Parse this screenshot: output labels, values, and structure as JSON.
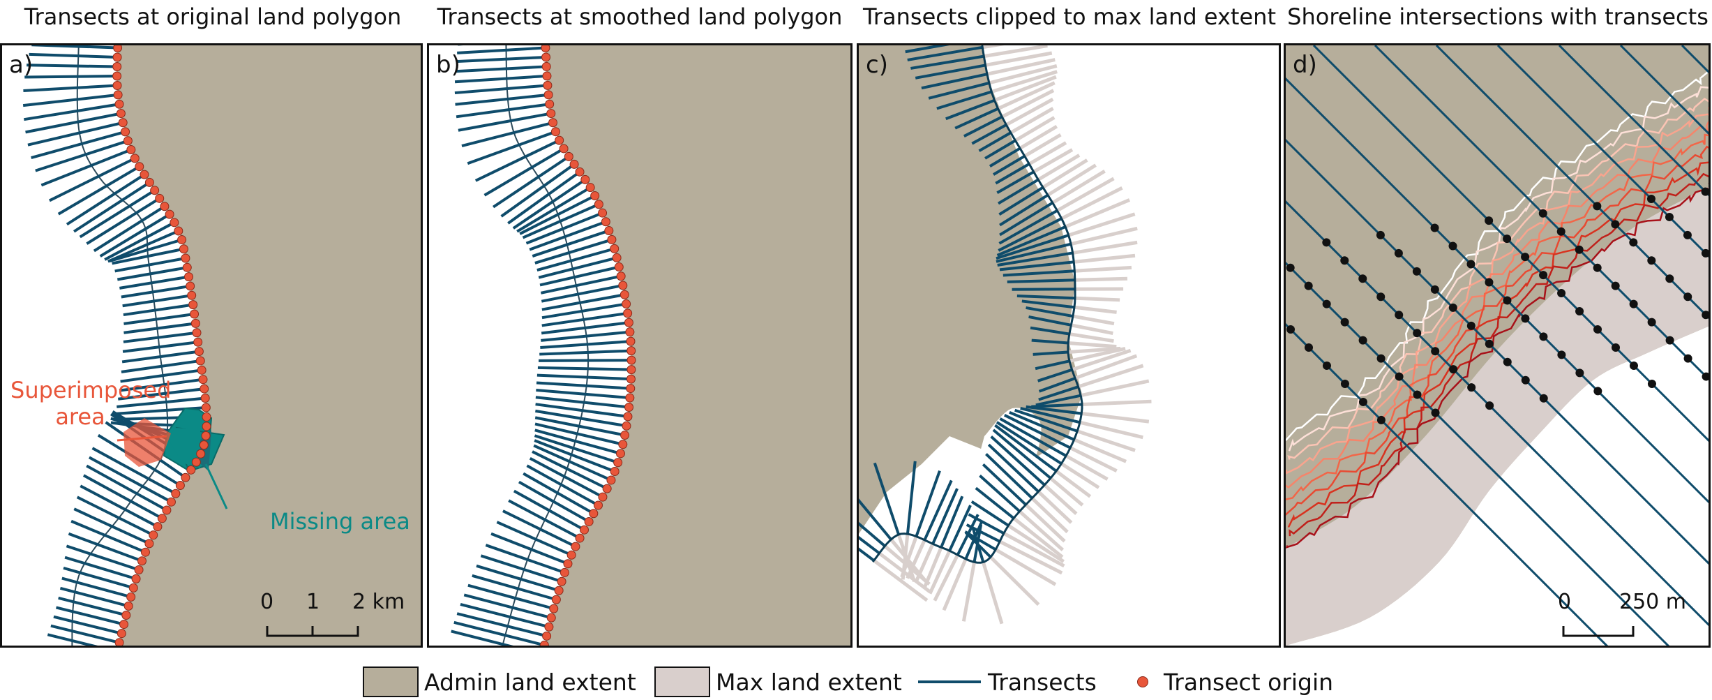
{
  "titles": {
    "a": "Transects at original land polygon",
    "b": "Transects at smoothed land polygon",
    "c": "Transects clipped to max land extent",
    "d": "Shoreline intersections with transects"
  },
  "panel_labels": {
    "a": "a)",
    "b": "b)",
    "c": "c)",
    "d": "d)"
  },
  "annotations": {
    "superimposed": "Superimposed\narea",
    "missing": "Missing area"
  },
  "scalebars": {
    "a": {
      "t0": "0",
      "t1": "1",
      "t2": "2 km"
    },
    "d": {
      "t0": "0",
      "t1": "250 m"
    }
  },
  "legend": {
    "admin": "Admin land extent",
    "max": "Max land extent",
    "transects": "Transects",
    "origin": "Transect origin"
  },
  "colors": {
    "admin_land": "#b6ae9b",
    "max_land": "#d9cfcc",
    "transect": "#0f4c6b",
    "origin": "#e8563a",
    "superimposed": "#e8563a",
    "missing": "#0b8a86",
    "clipped": "#d8cfcc"
  }
}
